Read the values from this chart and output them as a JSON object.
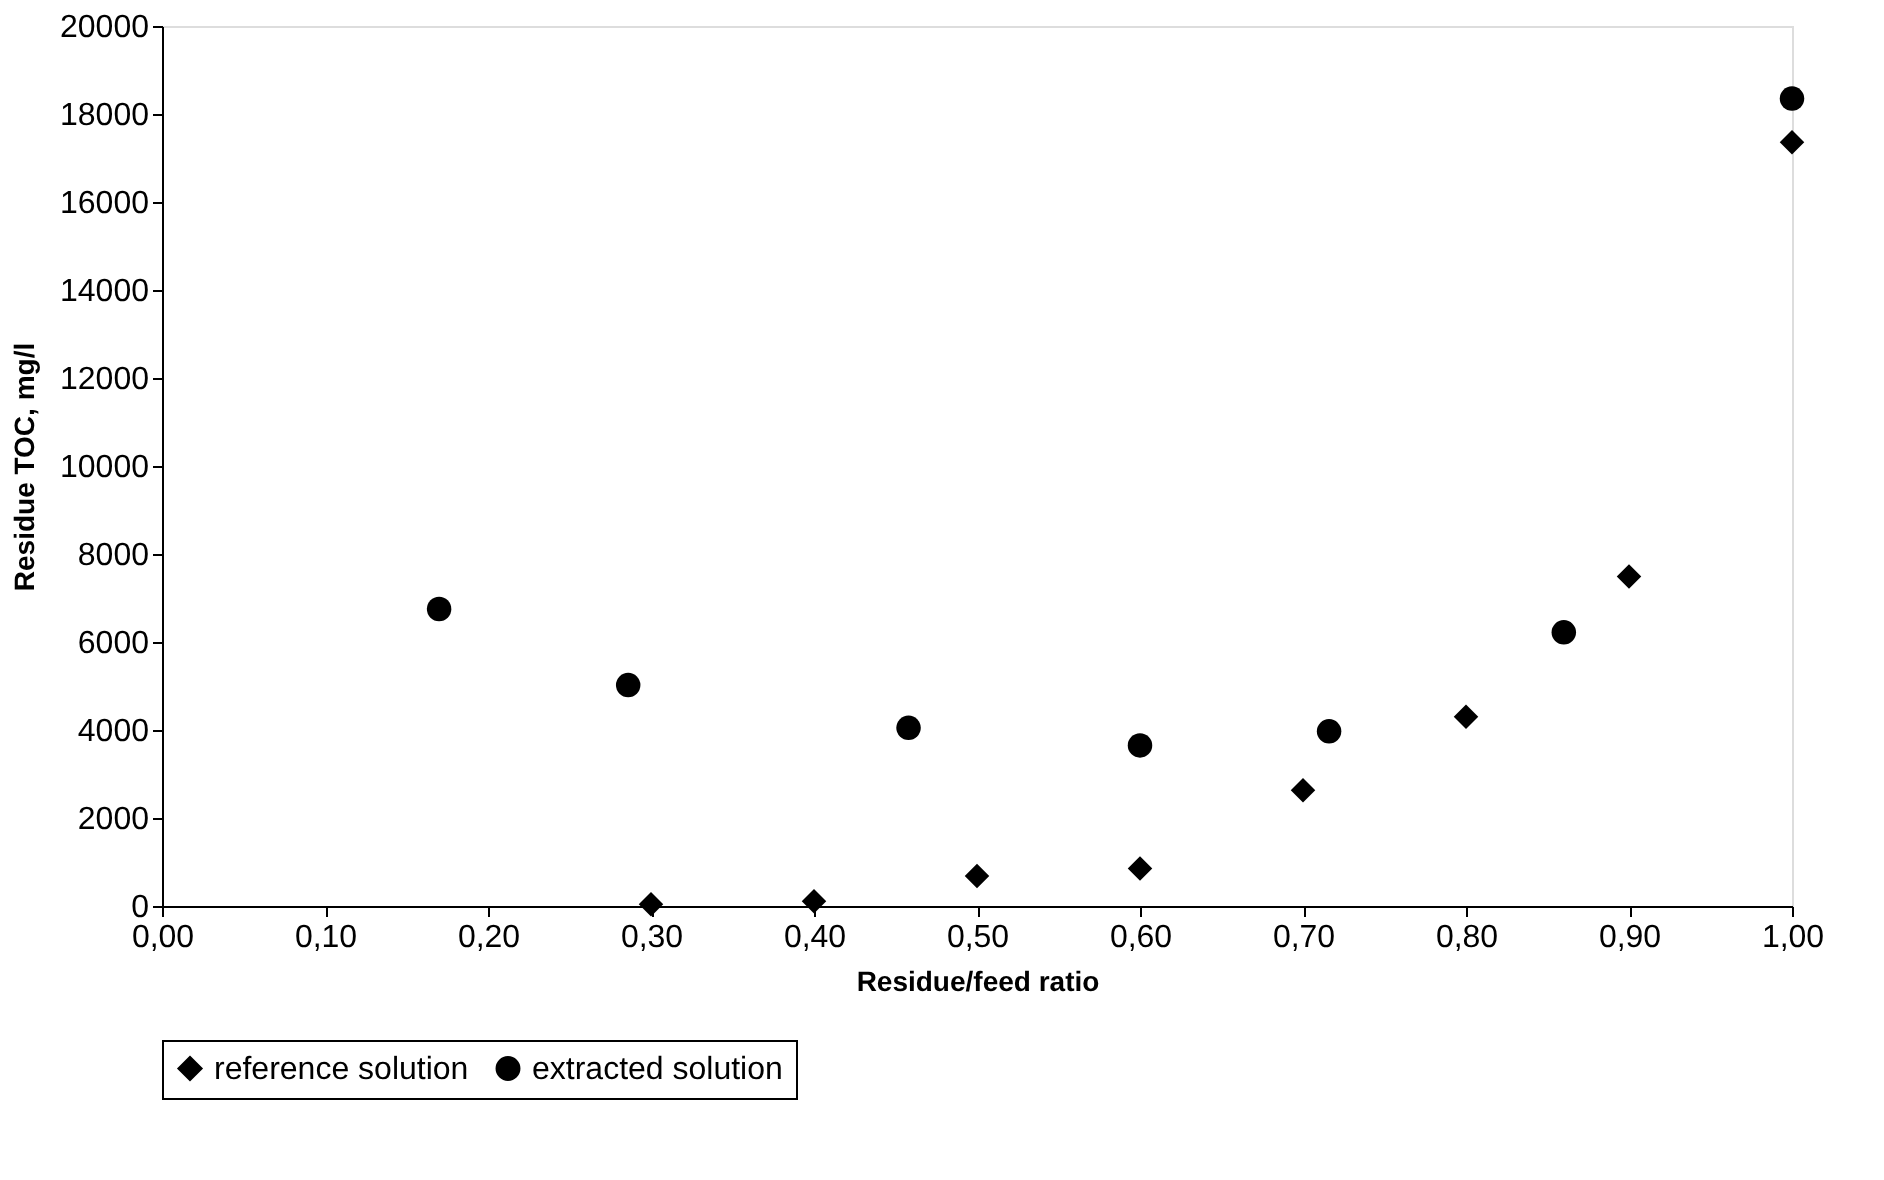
{
  "chart_data": {
    "type": "scatter",
    "xlabel": "Residue/feed ratio",
    "ylabel": "Residue TOC, mg/l",
    "xlim": [
      0,
      1
    ],
    "xticks": [
      {
        "value": 0,
        "label": "0,00"
      },
      {
        "value": 0.1,
        "label": "0,10"
      },
      {
        "value": 0.2,
        "label": "0,20"
      },
      {
        "value": 0.3,
        "label": "0,30"
      },
      {
        "value": 0.4,
        "label": "0,40"
      },
      {
        "value": 0.5,
        "label": "0,50"
      },
      {
        "value": 0.6,
        "label": "0,60"
      },
      {
        "value": 0.7,
        "label": "0,70"
      },
      {
        "value": 0.8,
        "label": "0,80"
      },
      {
        "value": 0.9,
        "label": "0,90"
      },
      {
        "value": 1,
        "label": "1,00"
      }
    ],
    "ylim": [
      0,
      20000
    ],
    "yticks": [
      0,
      2000,
      4000,
      6000,
      8000,
      10000,
      12000,
      14000,
      16000,
      18000,
      20000
    ],
    "grid": false,
    "legend": "bottom",
    "series": [
      {
        "name": "reference solution",
        "color": "#000000",
        "marker": "diamond",
        "x": [
          0.3,
          0.4,
          0.5,
          0.6,
          0.7,
          0.8,
          0.9,
          1.0
        ],
        "values": [
          40,
          110,
          680,
          850,
          2630,
          4300,
          7490,
          17360
        ]
      },
      {
        "name": "extracted solution",
        "color": "#000000",
        "marker": "circle",
        "x": [
          0.17,
          0.286,
          0.458,
          0.6,
          0.716,
          0.86,
          1.0
        ],
        "values": [
          6750,
          5020,
          4050,
          3650,
          3970,
          6220,
          18350
        ]
      }
    ]
  }
}
